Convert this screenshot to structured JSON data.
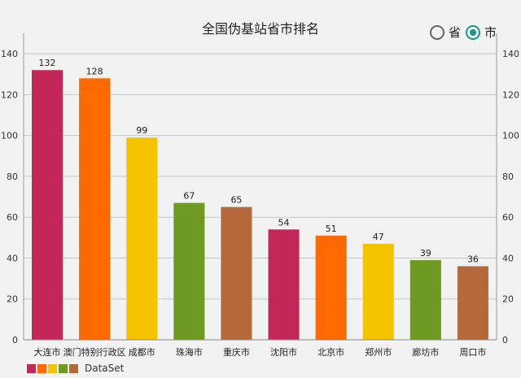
{
  "chart_data": {
    "type": "bar",
    "title": "全国伪基站省市排名",
    "categories": [
      "大连市",
      "澳门特别行政区",
      "成都市",
      "珠海市",
      "重庆市",
      "沈阳市",
      "北京市",
      "郑州市",
      "廊坊市",
      "周口市"
    ],
    "series": [
      {
        "name": "DataSet",
        "values": [
          132,
          128,
          99,
          67,
          65,
          54,
          51,
          47,
          39,
          36
        ]
      }
    ],
    "colors": [
      "#c3275a",
      "#ff6a00",
      "#f5c400",
      "#6e9a24",
      "#b5683a"
    ],
    "ylim": [
      0,
      150
    ],
    "yticks": [
      0,
      20,
      40,
      60,
      80,
      100,
      120,
      140
    ],
    "grid": true,
    "axes": "left-and-right",
    "legend": "bottom-left",
    "data_labels": true
  },
  "toggle": {
    "options": [
      {
        "label": "省",
        "checked": false
      },
      {
        "label": "市",
        "checked": true
      }
    ]
  },
  "legend": {
    "label": "DataSet"
  }
}
